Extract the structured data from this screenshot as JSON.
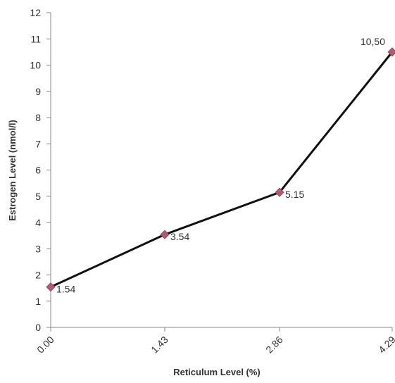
{
  "chart_data": {
    "type": "line",
    "title": "",
    "xlabel": "Reticulum Level (%)",
    "ylabel": "Estrogen Level  (nmol/l)",
    "categories": [
      "0.00",
      "1.43",
      "2.86",
      "4.29"
    ],
    "ylim": [
      0,
      12
    ],
    "yticks": [
      "0",
      "1",
      "2",
      "3",
      "4",
      "5",
      "6",
      "7",
      "8",
      "9",
      "10",
      "11",
      "12"
    ],
    "series": [
      {
        "values": [
          1.54,
          3.54,
          5.15,
          10.5
        ],
        "data_labels": [
          "1.54",
          "3.54",
          "5.15",
          "10,50"
        ]
      }
    ],
    "grid": false,
    "legend": "none",
    "colors": {
      "line": "#111111",
      "marker": "#b35a6e",
      "axis": "#8a8a8a",
      "text": "#333333"
    }
  }
}
